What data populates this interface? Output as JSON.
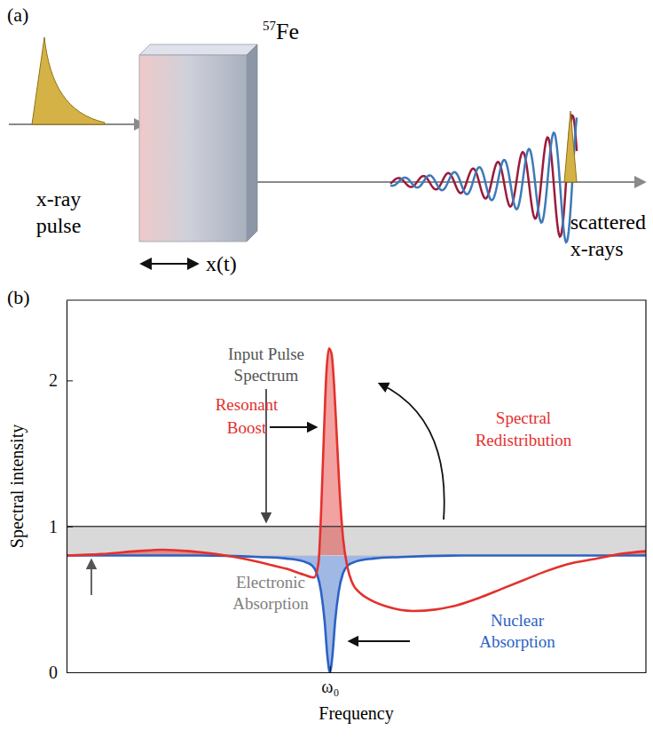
{
  "panel_a": {
    "label": "(a)",
    "isotope_mass": "57",
    "isotope_symbol": "Fe",
    "input_label": [
      "x-ray",
      "pulse"
    ],
    "output_label": [
      "scattered",
      "x-rays"
    ],
    "motion_label": "x(t)"
  },
  "chart_data": {
    "type": "line",
    "label": "(b)",
    "x_label": "Frequency",
    "y_label": "Spectral intensity",
    "xlim": [
      -30,
      36
    ],
    "xticks": [
      {
        "value": 0,
        "label": "ω₀"
      }
    ],
    "ylim": [
      0,
      2.55
    ],
    "yticks": [
      0,
      1,
      2
    ],
    "series": [
      {
        "type": "band",
        "color": "#d9d9d9",
        "x": [
          -30,
          36
        ],
        "values": [
          0.8,
          0.8
        ],
        "upper": [
          1,
          1
        ]
      },
      {
        "type": "line",
        "color": "#444444",
        "x": [
          -30,
          36
        ],
        "values": [
          1,
          1
        ]
      },
      {
        "type": "area",
        "color": "#2b62c4",
        "x": [
          -30,
          -15,
          -8,
          -5,
          -3,
          -2,
          -1.5,
          -1,
          -0.6,
          -0.3,
          0,
          0.3,
          0.6,
          1,
          1.5,
          2,
          3,
          5,
          8,
          15,
          36
        ],
        "values": [
          0.8,
          0.8,
          0.79,
          0.78,
          0.76,
          0.73,
          0.68,
          0.55,
          0.35,
          0.12,
          0,
          0.12,
          0.35,
          0.55,
          0.68,
          0.73,
          0.76,
          0.78,
          0.79,
          0.8,
          0.8
        ]
      },
      {
        "type": "area",
        "color": "#e3312d",
        "x": [
          -30,
          -26,
          -22,
          -19,
          -16,
          -13,
          -10,
          -7,
          -5,
          -3,
          -1.8,
          -1.3,
          -1,
          -0.7,
          -0.4,
          -0.1,
          0.2,
          0.5,
          0.8,
          1.1,
          1.5,
          2,
          2.5,
          3.5,
          4.5,
          6.5,
          9.5,
          12,
          14.5,
          17,
          19.5,
          22,
          24.5,
          27,
          30.5,
          33,
          36
        ],
        "values": [
          0.8,
          0.81,
          0.83,
          0.84,
          0.83,
          0.81,
          0.78,
          0.74,
          0.71,
          0.67,
          0.65,
          0.75,
          1.1,
          1.6,
          2.05,
          2.22,
          2.18,
          1.95,
          1.6,
          1.25,
          0.92,
          0.72,
          0.62,
          0.54,
          0.5,
          0.45,
          0.42,
          0.43,
          0.46,
          0.51,
          0.57,
          0.63,
          0.69,
          0.74,
          0.78,
          0.81,
          0.83
        ]
      }
    ],
    "annotations": [
      {
        "text": [
          "Input Pulse",
          "Spectrum"
        ]
      },
      {
        "text": [
          "Electronic",
          "Absorption"
        ]
      },
      {
        "text": [
          "Resonant",
          "Boost"
        ]
      },
      {
        "text": [
          "Spectral",
          "Redistribution"
        ]
      },
      {
        "text": [
          "Nuclear",
          "Absorption"
        ]
      }
    ]
  }
}
